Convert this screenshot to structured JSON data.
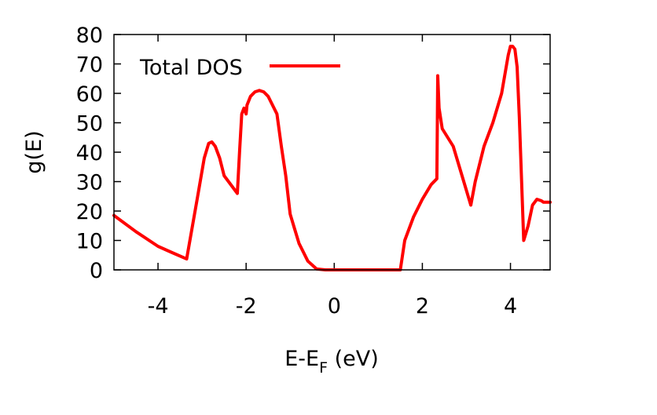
{
  "chart_data": {
    "type": "line",
    "title": "",
    "xlabel": "E-E",
    "xlabel_sub": "F",
    "xlabel_unit": " (eV)",
    "ylabel": "g(E)",
    "xlim": [
      -5,
      4.9
    ],
    "ylim": [
      0,
      80
    ],
    "grid": false,
    "legend_position": "top-left",
    "x_ticks": [
      -4,
      -2,
      0,
      2,
      4
    ],
    "x_tick_labels": [
      "-4",
      "-2",
      "0",
      "2",
      "4"
    ],
    "y_ticks": [
      0,
      10,
      20,
      30,
      40,
      50,
      60,
      70,
      80
    ],
    "y_tick_labels": [
      "0",
      "10",
      "20",
      "30",
      "40",
      "50",
      "60",
      "70",
      "80"
    ],
    "series": [
      {
        "name": "Total DOS",
        "color": "#ff0000",
        "x": [
          -5.0,
          -4.5,
          -4.0,
          -3.7,
          -3.35,
          -3.1,
          -2.95,
          -2.85,
          -2.78,
          -2.7,
          -2.6,
          -2.5,
          -2.4,
          -2.2,
          -2.15,
          -2.1,
          -2.05,
          -2.0,
          -1.98,
          -1.9,
          -1.8,
          -1.7,
          -1.6,
          -1.5,
          -1.3,
          -1.2,
          -1.1,
          -1.0,
          -0.9,
          -0.8,
          -0.6,
          -0.4,
          -0.2,
          0.0,
          0.5,
          1.0,
          1.5,
          1.6,
          1.8,
          2.0,
          2.2,
          2.33,
          2.35,
          2.38,
          2.45,
          2.7,
          2.9,
          3.1,
          3.2,
          3.4,
          3.6,
          3.8,
          3.95,
          4.0,
          4.05,
          4.1,
          4.15,
          4.2,
          4.3,
          4.4,
          4.5,
          4.6,
          4.7,
          4.75,
          4.9
        ],
        "y": [
          18.5,
          13,
          8,
          6,
          3.7,
          25,
          38,
          43,
          43.5,
          42,
          38,
          32,
          30,
          26,
          40,
          53,
          55,
          53,
          56,
          59,
          60.5,
          61,
          60.5,
          59,
          53,
          42,
          32,
          19,
          14,
          9,
          3,
          0.3,
          0,
          0,
          0,
          0,
          0,
          10,
          18,
          24,
          29,
          31,
          66,
          55,
          48,
          42,
          32,
          22,
          30,
          42,
          50,
          60,
          73,
          76,
          76,
          75,
          69,
          52,
          10,
          15,
          22,
          24,
          23.5,
          23,
          23
        ]
      }
    ]
  }
}
